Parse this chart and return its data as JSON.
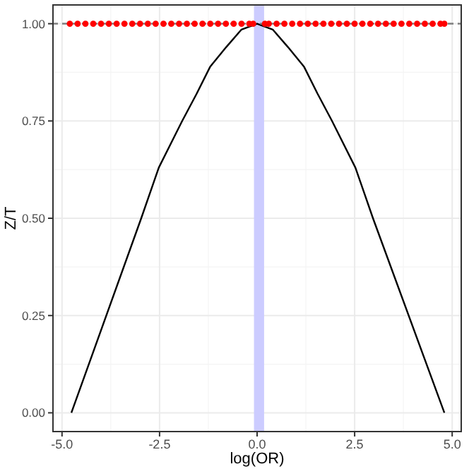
{
  "chart_data": {
    "type": "line",
    "xlabel": "log(OR)",
    "ylabel": "Z/T",
    "xlim": [
      -5.25,
      5.25
    ],
    "ylim": [
      -0.05,
      1.05
    ],
    "xticks": [
      {
        "value": -5,
        "label": "-5.0"
      },
      {
        "value": -2.5,
        "label": "-2.5"
      },
      {
        "value": 0,
        "label": "0.0"
      },
      {
        "value": 2.5,
        "label": "2.5"
      },
      {
        "value": 5,
        "label": "5.0"
      }
    ],
    "yticks": [
      {
        "value": 0,
        "label": "0.00"
      },
      {
        "value": 0.25,
        "label": "0.25"
      },
      {
        "value": 0.5,
        "label": "0.50"
      },
      {
        "value": 0.75,
        "label": "0.75"
      },
      {
        "value": 1,
        "label": "1.00"
      }
    ],
    "grid": true,
    "series": [
      {
        "color": "#000000",
        "marker": "none",
        "line_style": "solid",
        "x": [
          -4.76,
          -2.97,
          -2.52,
          -1.92,
          -1.55,
          -1.2,
          -0.79,
          -0.4,
          0,
          0.4,
          0.79,
          1.2,
          1.55,
          1.92,
          2.52,
          2.97,
          4.8
        ],
        "values": [
          0,
          0.5,
          0.63,
          0.75,
          0.82,
          0.89,
          0.94,
          0.985,
          1,
          0.985,
          0.94,
          0.89,
          0.82,
          0.75,
          0.63,
          0.5,
          0
        ]
      },
      {
        "type": "scatter",
        "color": "#ff0000",
        "marker": "circle",
        "x": [
          -4.8,
          -4.6,
          -4.4,
          -4.2,
          -4.0,
          -3.8,
          -3.6,
          -3.4,
          -3.2,
          -3.0,
          -2.8,
          -2.6,
          -2.4,
          -2.2,
          -2.0,
          -1.8,
          -1.6,
          -1.4,
          -1.2,
          -1.0,
          -0.8,
          -0.6,
          -0.4,
          -0.2,
          -0.1,
          0.2,
          0.3,
          0.5,
          0.7,
          0.9,
          1.1,
          1.3,
          1.5,
          1.7,
          1.9,
          2.1,
          2.3,
          2.5,
          2.7,
          2.9,
          3.1,
          3.3,
          3.5,
          3.7,
          3.9,
          4.1,
          4.3,
          4.5,
          4.7,
          4.8
        ],
        "values": [
          1,
          1,
          1,
          1,
          1,
          1,
          1,
          1,
          1,
          1,
          1,
          1,
          1,
          1,
          1,
          1,
          1,
          1,
          1,
          1,
          1,
          1,
          1,
          1,
          1,
          1,
          1,
          1,
          1,
          1,
          1,
          1,
          1,
          1,
          1,
          1,
          1,
          1,
          1,
          1,
          1,
          1,
          1,
          1,
          1,
          1,
          1,
          1,
          1,
          1
        ]
      }
    ],
    "ref_lines": [
      {
        "axis": "y",
        "value": 1,
        "color": "#7f7f7f",
        "line_style": "dashed"
      }
    ],
    "bands": [
      {
        "axis": "x",
        "from": -0.08,
        "to": 0.18,
        "color": "#ccccff"
      }
    ]
  }
}
